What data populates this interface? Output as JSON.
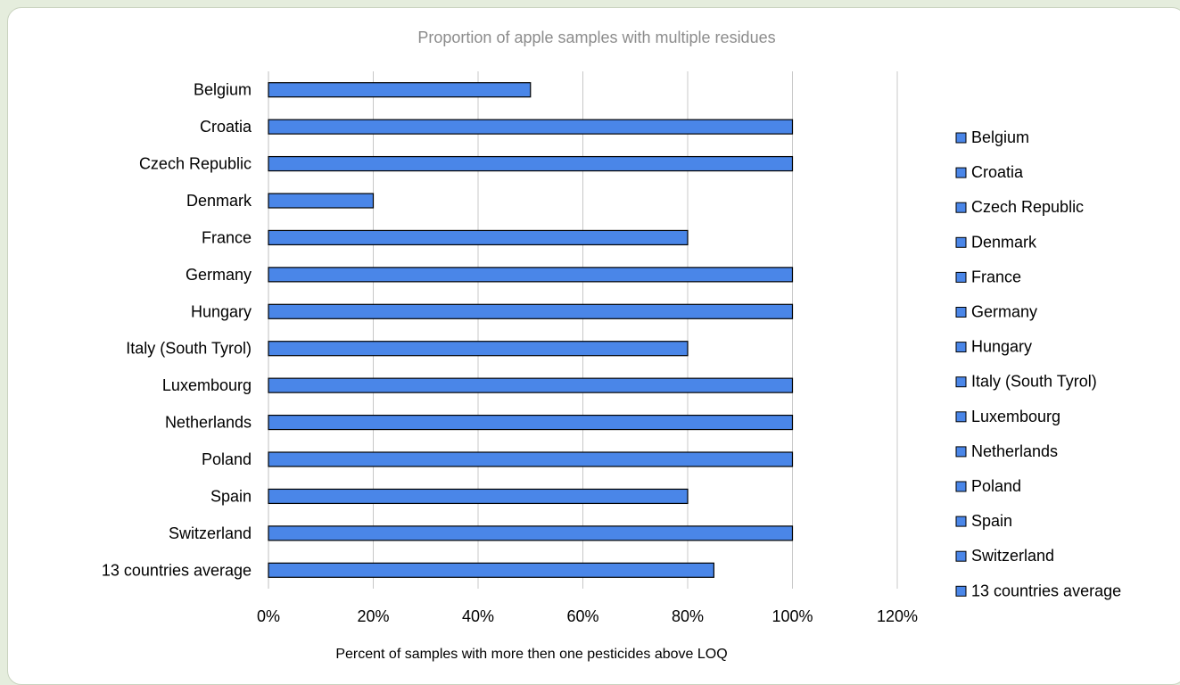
{
  "chart_data": {
    "type": "bar",
    "orientation": "horizontal",
    "title": "Proportion of apple samples with multiple residues",
    "xlabel": "Percent of samples with more then one pesticides above LOQ",
    "ylabel": "",
    "categories": [
      "Belgium",
      "Croatia",
      "Czech Republic",
      "Denmark",
      "France",
      "Germany",
      "Hungary",
      "Italy (South Tyrol)",
      "Luxembourg",
      "Netherlands",
      "Poland",
      "Spain",
      "Switzerland",
      "13 countries average"
    ],
    "values": [
      50,
      100,
      100,
      20,
      80,
      100,
      100,
      80,
      100,
      100,
      100,
      80,
      100,
      85
    ],
    "xlim": [
      0,
      120
    ],
    "xticks": [
      0,
      20,
      40,
      60,
      80,
      100,
      120
    ],
    "xtick_labels": [
      "0%",
      "20%",
      "40%",
      "60%",
      "80%",
      "100%",
      "120%"
    ],
    "grid": "vertical",
    "legend": "right",
    "bar_color": "#4a86e8",
    "bar_edge_color": "#000000",
    "gridline_color": "#c8c8c8",
    "title_color": "#8c8c8c"
  }
}
